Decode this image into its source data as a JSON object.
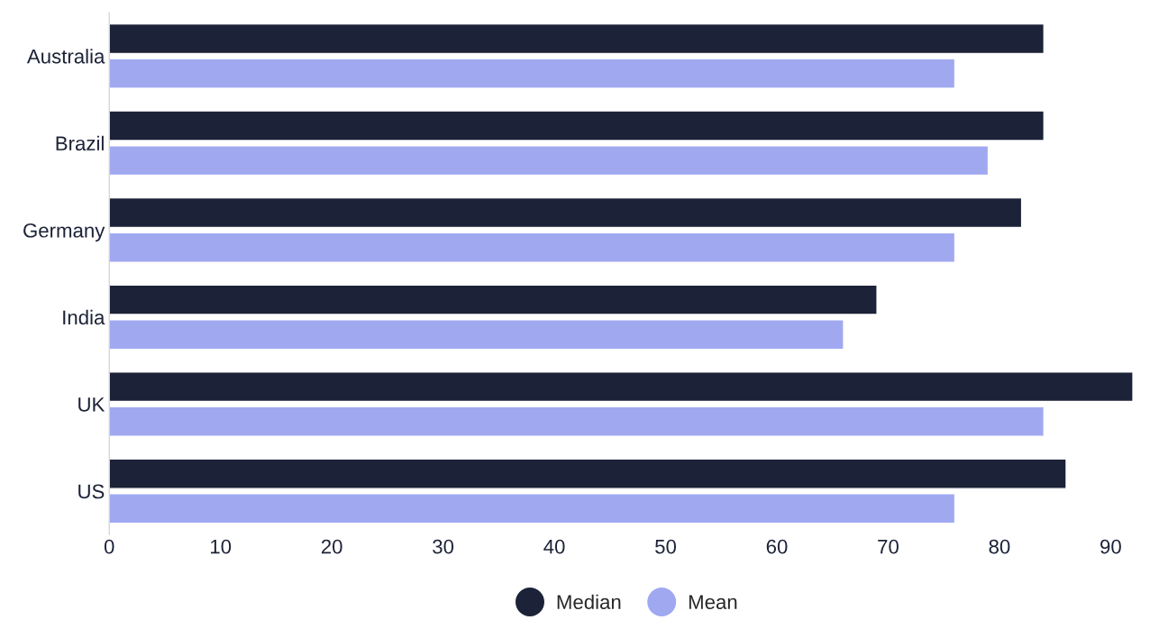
{
  "chart_data": {
    "type": "bar",
    "orientation": "horizontal",
    "categories": [
      "Australia",
      "Brazil",
      "Germany",
      "India",
      "UK",
      "US"
    ],
    "series": [
      {
        "name": "Median",
        "color": "#1c2237",
        "values": [
          84,
          84,
          82,
          69,
          92,
          86
        ]
      },
      {
        "name": "Mean",
        "color": "#a0a9f0",
        "values": [
          76,
          79,
          76,
          66,
          84,
          76
        ]
      }
    ],
    "xlim": [
      0,
      92.5
    ],
    "xticks": [
      0,
      10,
      20,
      30,
      40,
      50,
      60,
      70,
      80,
      90
    ],
    "grid": false,
    "legend": "bottom"
  }
}
